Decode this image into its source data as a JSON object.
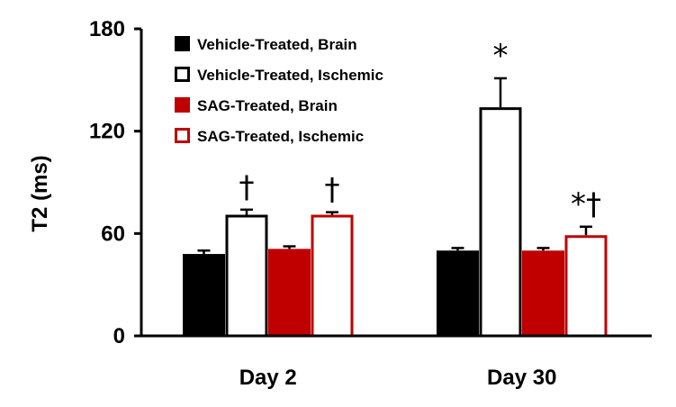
{
  "chart_data": {
    "type": "bar",
    "ylabel": "T2 (ms)",
    "xlabel": "",
    "ylim": [
      0,
      180
    ],
    "yticks": [
      0,
      60,
      120,
      180
    ],
    "grid": false,
    "legend_position": "top-left",
    "categories": [
      "Day 2",
      "Day 30"
    ],
    "series": [
      {
        "name": "Vehicle-Treated, Brain",
        "values": [
          48,
          50
        ],
        "errors": [
          2,
          1.5
        ],
        "fill": "#000000",
        "stroke": "#000000"
      },
      {
        "name": "Vehicle-Treated, Ischemic",
        "values": [
          71,
          134
        ],
        "errors": [
          3,
          17
        ],
        "fill": "#ffffff",
        "stroke": "#000000"
      },
      {
        "name": "SAG-Treated, Brain",
        "values": [
          51,
          50
        ],
        "errors": [
          1.5,
          1.5
        ],
        "fill": "#c00000",
        "stroke": "#c00000"
      },
      {
        "name": "SAG-Treated, Ischemic",
        "values": [
          71,
          59
        ],
        "errors": [
          1.5,
          5
        ],
        "fill": "#ffffff",
        "stroke": "#c00000"
      }
    ],
    "annotations": [
      {
        "text": "†",
        "category": 0,
        "series": 1
      },
      {
        "text": "†",
        "category": 0,
        "series": 3
      },
      {
        "text": "*",
        "category": 1,
        "series": 1
      },
      {
        "text": "*†",
        "category": 1,
        "series": 3
      }
    ]
  }
}
